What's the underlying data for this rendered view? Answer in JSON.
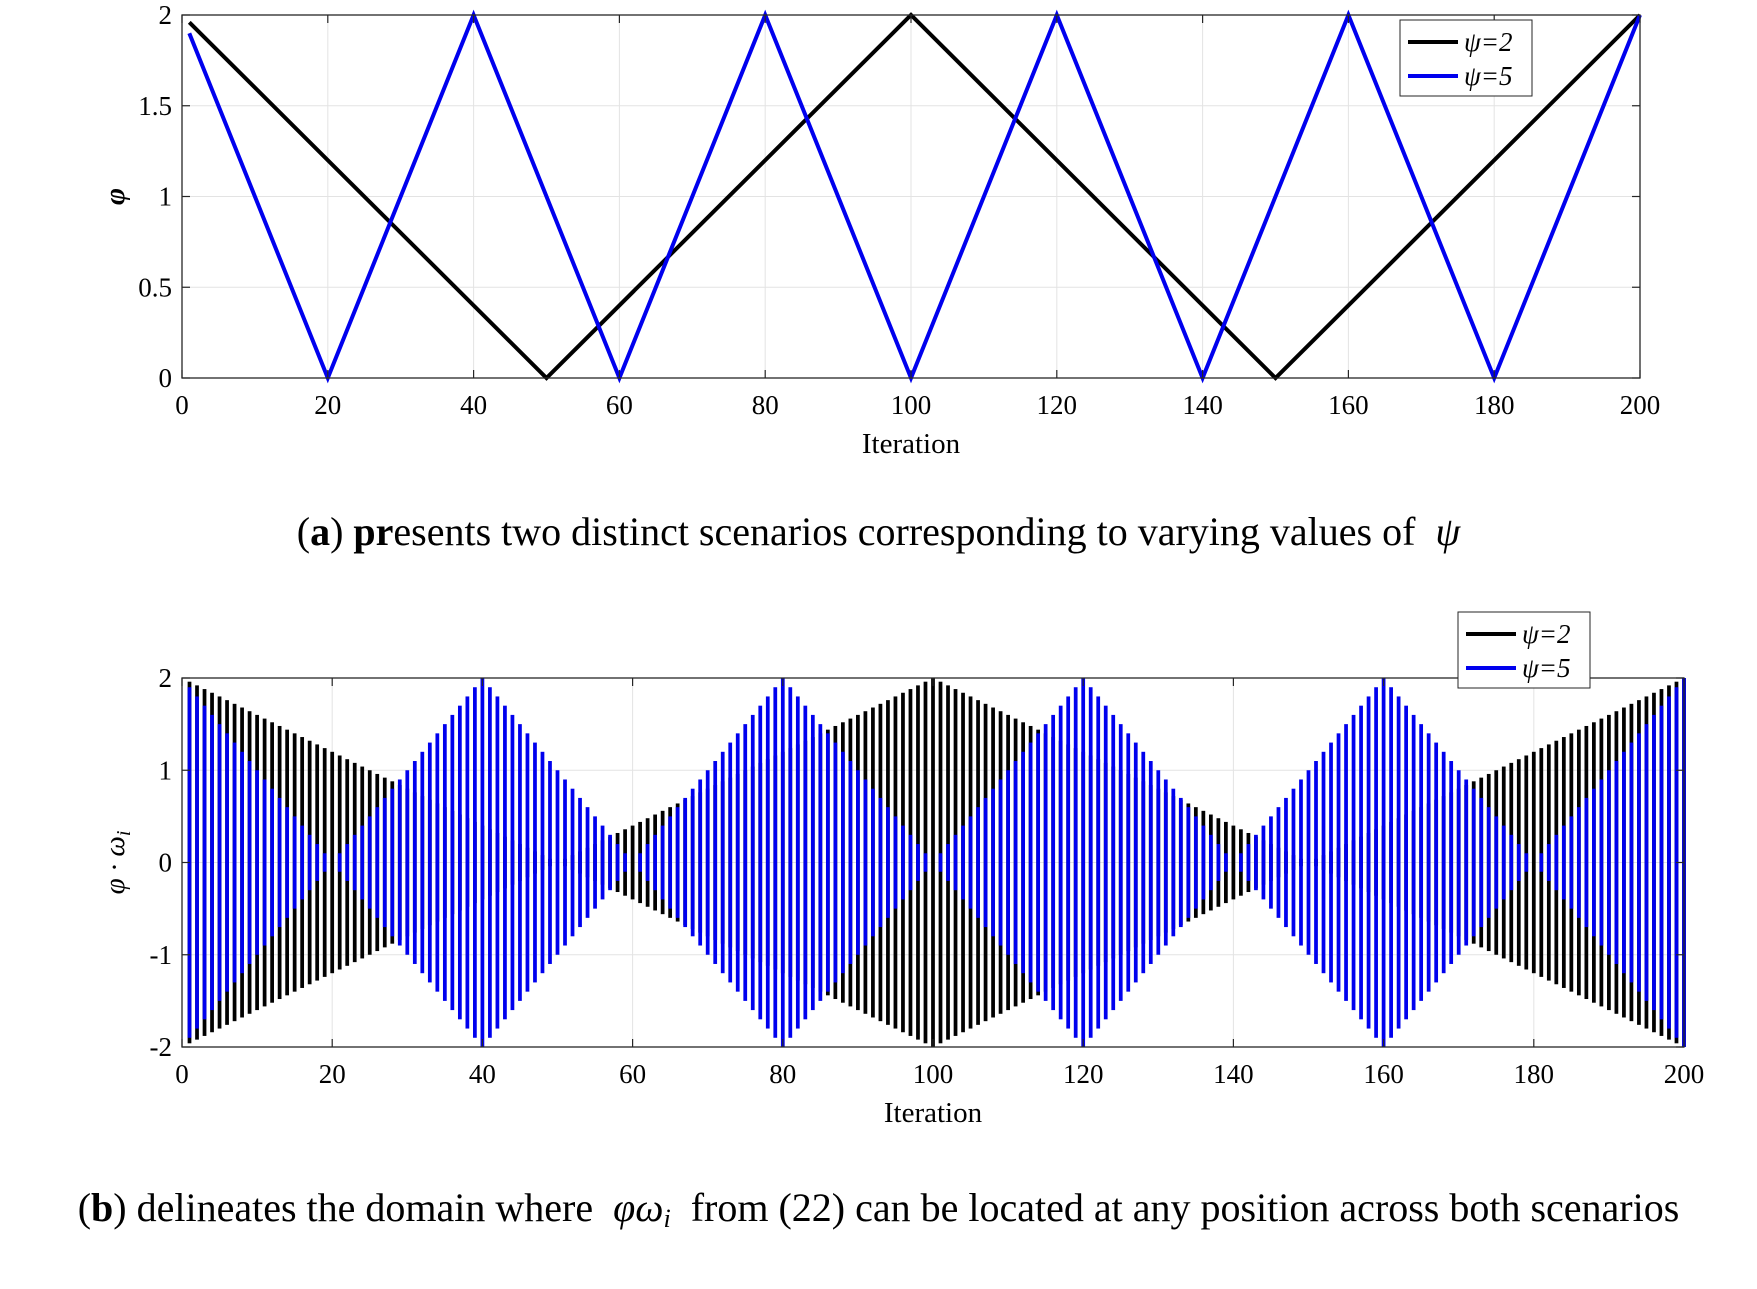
{
  "captions": {
    "a": {
      "letter": "a",
      "bold": "pr",
      "rest": "esents two distinct scenarios corresponding to varying values of",
      "symbol": "ψ"
    },
    "b": {
      "letter": "b",
      "before": "delineates the domain where",
      "symbol": "φω",
      "subscript": "i",
      "after": "from (22) can be located at any position across both scenarios"
    }
  },
  "chart_data": [
    {
      "type": "line",
      "xlabel": "Iteration",
      "ylabel": "φ",
      "xlim": [
        0,
        200
      ],
      "ylim": [
        0,
        2
      ],
      "xticks": [
        0,
        20,
        40,
        60,
        80,
        100,
        120,
        140,
        160,
        180,
        200
      ],
      "yticks": [
        "0",
        "0.5",
        "1",
        "1.5",
        "2"
      ],
      "grid": true,
      "legend": "top-right",
      "series": [
        {
          "name": "ψ=2",
          "color": "#000000",
          "x": [
            1,
            50,
            100,
            150,
            200
          ],
          "y": [
            1.96,
            0,
            2,
            0,
            2
          ]
        },
        {
          "name": "ψ=5",
          "color": "#0000ee",
          "x": [
            1,
            20,
            40,
            60,
            80,
            100,
            120,
            140,
            160,
            180,
            200
          ],
          "y": [
            1.9,
            0,
            2,
            0,
            2,
            0,
            2,
            0,
            2,
            0,
            2
          ]
        }
      ]
    },
    {
      "type": "bar",
      "description_of_values": "vertical bars at each iteration i=1..200 spanning from -φ(i) to +φ(i)",
      "xlabel": "Iteration",
      "ylabel": "φ · ω",
      "ylabel_subscript": "i",
      "xlim": [
        0,
        200
      ],
      "ylim": [
        -2,
        2
      ],
      "xticks": [
        0,
        20,
        40,
        60,
        80,
        100,
        120,
        140,
        160,
        180,
        200
      ],
      "yticks": [
        "-2",
        "-1",
        "0",
        "1",
        "2"
      ],
      "grid": true,
      "legend": "top-right",
      "iterations": [
        1,
        200
      ],
      "series": [
        {
          "name": "ψ=2",
          "color": "#000000",
          "period": 100,
          "peak": 2,
          "envelope": "triangular, |φ| = 2·|1 - 2·((i mod 100)/100)|"
        },
        {
          "name": "ψ=5",
          "color": "#0000ee",
          "period": 40,
          "peak": 2,
          "envelope": "triangular, |φ| = 2·|1 - 2·((i mod 40)/40)|"
        }
      ]
    }
  ]
}
